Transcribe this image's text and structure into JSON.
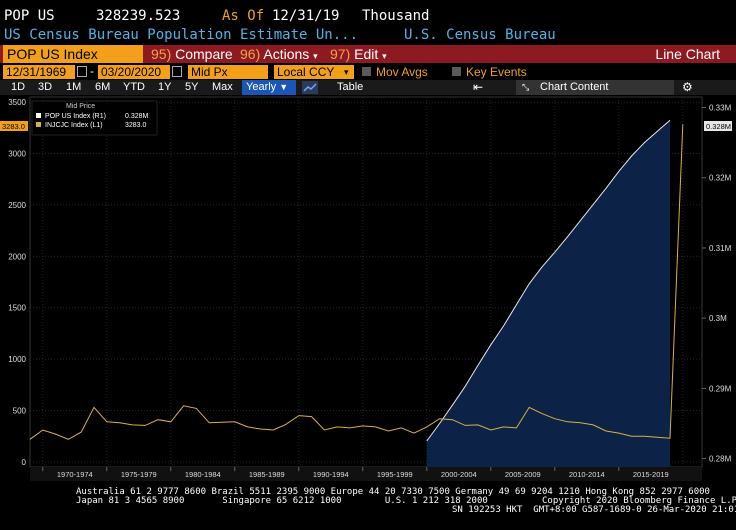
{
  "header": {
    "ticker": "POP US",
    "value": "328239.523",
    "as_of_label": "As Of",
    "as_of_date": "12/31/19",
    "units": "Thousand"
  },
  "subheader": {
    "description": "US Census Bureau Population Estimate Un...",
    "source": "U.S. Census Bureau"
  },
  "menubar": {
    "security_field": "POP US Index",
    "compare_num": "95)",
    "compare_label": "Compare",
    "actions_num": "96)",
    "actions_label": "Actions",
    "edit_num": "97)",
    "edit_label": "Edit",
    "chart_type": "Line Chart"
  },
  "settings": {
    "start_date": "12/31/1969",
    "end_date": "03/20/2020",
    "price_type": "Mid Px",
    "currency": "Local CCY",
    "mov_avgs": "Mov Avgs",
    "key_events": "Key Events"
  },
  "toolbar": {
    "ranges": [
      "1D",
      "3D",
      "1M",
      "6M",
      "YTD",
      "1Y",
      "5Y",
      "Max"
    ],
    "period": "Yearly",
    "table": "Table",
    "chart_content": "Chart Content"
  },
  "legend": {
    "title": "Mid Price",
    "items": [
      {
        "label": "POP US Index  (R1)",
        "value": "0.328M",
        "color": "#ffffff"
      },
      {
        "label": "INJCJC Index  (L1)",
        "value": "3283.0",
        "color": "#d4b24c"
      }
    ]
  },
  "footer": {
    "line1": "Australia 61 2 9777 8600 Brazil 5511 2395 9000 Europe 44 20 7330 7500 Germany 49 69 9204 1210 Hong Kong 852 2977 6000",
    "line2": "Japan 81 3 4565 8900       Singapore 65 6212 1000        U.S. 1 212 318 2000          Copyright 2020 Bloomberg Finance L.P.",
    "line3": "SN 192253 HKT  GMT+8:00 G587-1689-0 26-Mar-2020 21:01:21"
  },
  "chart_data": {
    "type": "line",
    "title": "",
    "xlabel": "",
    "ylabel": "",
    "x_ticks": [
      "1970-1974",
      "1975-1979",
      "1980-1984",
      "1985-1989",
      "1990-1994",
      "1995-1999",
      "2000-2004",
      "2005-2009",
      "2010-2014",
      "2015-2019"
    ],
    "left_axis": {
      "ticks": [
        0,
        500,
        1000,
        1500,
        2000,
        2500,
        3000,
        3500
      ],
      "ylim": [
        -50,
        3550
      ],
      "current": "3283.0"
    },
    "right_axis": {
      "ticks": [
        "0.28M",
        "0.29M",
        "0.3M",
        "0.31M",
        "0.32M",
        "0.33M"
      ],
      "ylim": [
        0.2788,
        0.3315
      ],
      "current": "0.328M"
    },
    "series": [
      {
        "name": "INJCJC Index",
        "axis": "left",
        "color": "#d4b24c",
        "x": [
          1969,
          1970,
          1971,
          1972,
          1973,
          1974,
          1975,
          1976,
          1977,
          1978,
          1979,
          1980,
          1981,
          1982,
          1983,
          1984,
          1985,
          1986,
          1987,
          1988,
          1989,
          1990,
          1991,
          1992,
          1993,
          1994,
          1995,
          1996,
          1997,
          1998,
          1999,
          2000,
          2001,
          2002,
          2003,
          2004,
          2005,
          2006,
          2007,
          2008,
          2009,
          2010,
          2011,
          2012,
          2013,
          2014,
          2015,
          2016,
          2017,
          2018,
          2019,
          2020
        ],
        "y": [
          220,
          310,
          270,
          220,
          290,
          530,
          390,
          380,
          360,
          355,
          410,
          390,
          545,
          520,
          380,
          385,
          390,
          340,
          320,
          310,
          365,
          450,
          440,
          310,
          340,
          330,
          350,
          340,
          300,
          330,
          280,
          340,
          420,
          410,
          355,
          360,
          310,
          340,
          330,
          530,
          470,
          420,
          390,
          380,
          360,
          300,
          280,
          250,
          250,
          240,
          230,
          3283
        ]
      },
      {
        "name": "POP US Index",
        "axis": "right",
        "color": "#ffffff",
        "x": [
          2000,
          2001,
          2002,
          2003,
          2004,
          2005,
          2006,
          2007,
          2008,
          2009,
          2010,
          2011,
          2012,
          2013,
          2014,
          2015,
          2016,
          2017,
          2018,
          2019
        ],
        "y": [
          0.2825,
          0.285,
          0.2876,
          0.2903,
          0.2933,
          0.2962,
          0.2989,
          0.3019,
          0.3049,
          0.3073,
          0.3094,
          0.3116,
          0.3139,
          0.3162,
          0.3185,
          0.3209,
          0.3231,
          0.325,
          0.3266,
          0.3282
        ]
      }
    ]
  }
}
